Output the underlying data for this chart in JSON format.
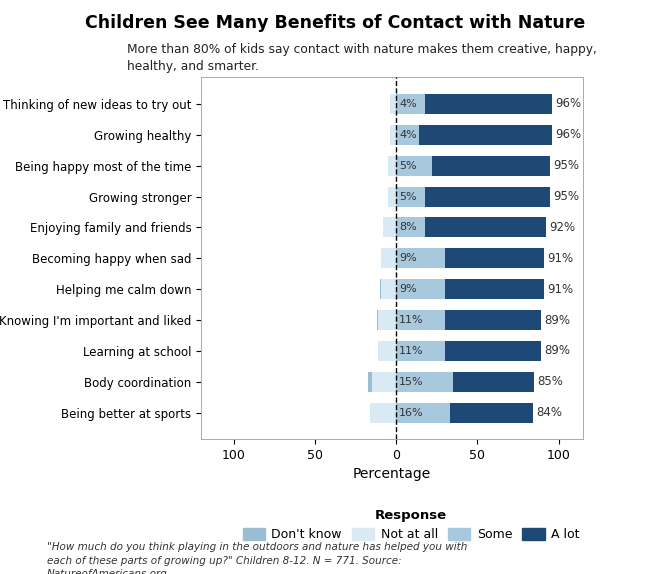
{
  "title": "Children See Many Benefits of Contact with Nature",
  "subtitle": "More than 80% of kids say contact with nature makes them creative, happy,\nhealthy, and smarter.",
  "categories": [
    "Thinking of new ideas to try out",
    "Growing healthy",
    "Being happy most of the time",
    "Growing stronger",
    "Enjoying family and friends",
    "Becoming happy when sad",
    "Helping me calm down",
    "Knowing I'm important and liked",
    "Learning at school",
    "Body coordination",
    "Being better at sports"
  ],
  "dont_know": [
    0,
    0,
    0,
    0,
    0,
    0,
    1,
    1,
    0,
    2,
    0
  ],
  "not_at_all": [
    4,
    4,
    5,
    5,
    8,
    9,
    9,
    11,
    11,
    15,
    16
  ],
  "some": [
    18,
    14,
    22,
    18,
    18,
    30,
    30,
    30,
    30,
    35,
    33
  ],
  "a_lot": [
    78,
    82,
    73,
    77,
    74,
    61,
    61,
    59,
    59,
    50,
    51
  ],
  "left_labels": [
    "4%",
    "4%",
    "5%",
    "5%",
    "8%",
    "9%",
    "9%",
    "11%",
    "11%",
    "15%",
    "16%"
  ],
  "right_labels": [
    "96%",
    "96%",
    "95%",
    "95%",
    "92%",
    "91%",
    "91%",
    "89%",
    "89%",
    "85%",
    "84%"
  ],
  "color_dont_know": "#9bbdd4",
  "color_not_at_all": "#daeaf4",
  "color_some": "#a8c8dd",
  "color_a_lot": "#1e4976",
  "xlabel": "Percentage",
  "xlim": [
    -120,
    115
  ],
  "xticks": [
    -100,
    -50,
    0,
    50,
    100
  ],
  "xticklabels": [
    "100",
    "50",
    "0",
    "50",
    "100"
  ],
  "footnote": "\"How much do you think playing in the outdoors and nature has helped you with\neach of these parts of growing up?\" Children 8-12. N = 771. Source:\nNatureofAmericans.org"
}
